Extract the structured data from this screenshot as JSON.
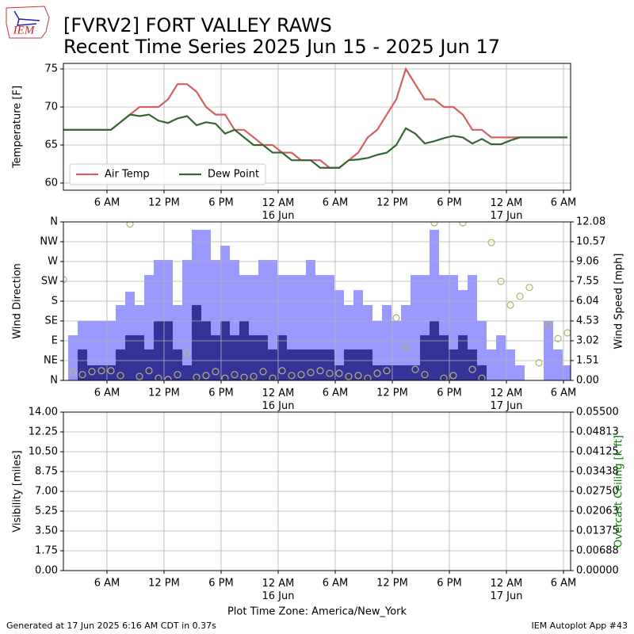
{
  "header": {
    "logo": "IEM",
    "title": "[FVRV2] FORT VALLEY RAWS",
    "subtitle": "Recent Time Series 2025 Jun 15 - 2025 Jun 17"
  },
  "chart_data": [
    {
      "type": "line",
      "ylabel": "Temperature [F]",
      "x": [
        1.42,
        2.42,
        3.42,
        4.42,
        5.42,
        6.42,
        7.42,
        8.42,
        9.42,
        10.42,
        11.42,
        12.42,
        13.42,
        14.42,
        15.42,
        16.42,
        17.42,
        18.42,
        19.42,
        20.42,
        21.42,
        22.42,
        23.42,
        24.42,
        25.42,
        26.42,
        27.42,
        28.42,
        29.42,
        30.42,
        31.42,
        32.42,
        33.42,
        34.42,
        35.42,
        36.42,
        37.42,
        38.42,
        39.42,
        40.42,
        41.42,
        42.42,
        43.42,
        44.42,
        45.42,
        46.42,
        47.42,
        48.42,
        49.42,
        50.42,
        51.42,
        52.42,
        53.42,
        54.42
      ],
      "series": [
        {
          "name": "Air Temp",
          "color": "#d65f5f",
          "values": [
            67,
            67,
            67,
            67,
            67,
            67,
            68,
            69,
            70,
            70,
            70,
            71,
            73,
            73,
            72,
            70,
            69,
            69,
            67,
            67,
            66,
            65,
            65,
            64,
            64,
            63,
            63,
            63,
            62,
            62,
            63,
            64,
            66,
            67,
            69,
            71,
            75,
            73,
            71,
            71,
            70,
            70,
            69,
            67,
            67,
            66,
            66,
            66,
            66,
            null,
            null,
            null,
            null,
            null
          ]
        },
        {
          "name": "Dew Point",
          "color": "#336633",
          "values": [
            67,
            67,
            67,
            67,
            67,
            67,
            68,
            69,
            68.8,
            69,
            68.2,
            67.9,
            68.5,
            68.8,
            67.6,
            68,
            67.8,
            66.5,
            67,
            66,
            65,
            65,
            64,
            64,
            63,
            63,
            63,
            62,
            62,
            62,
            63,
            63.1,
            63.3,
            63.7,
            64,
            65,
            67.2,
            66.5,
            65.2,
            65.5,
            65.9,
            66.2,
            66,
            65.2,
            65.8,
            65.1,
            65.1,
            65.6,
            66,
            66,
            66,
            66,
            66,
            66
          ]
        }
      ],
      "xlim": [
        1.42,
        54.75
      ],
      "xticks": [
        {
          "value": 6,
          "label": "6 AM"
        },
        {
          "value": 12,
          "label": "12 PM"
        },
        {
          "value": 18,
          "label": "6 PM"
        },
        {
          "value": 24,
          "label": "12 AM\n16 Jun"
        },
        {
          "value": 30,
          "label": "6 AM"
        },
        {
          "value": 36,
          "label": "12 PM"
        },
        {
          "value": 42,
          "label": "6 PM"
        },
        {
          "value": 48,
          "label": "12 AM\n17 Jun"
        },
        {
          "value": 54,
          "label": "6 AM"
        }
      ],
      "ylim": [
        59.06,
        75.73
      ],
      "yticks": [
        60,
        65,
        70,
        75
      ],
      "grid": true,
      "legend": "lower left"
    },
    {
      "type": "bar",
      "ylabel": "Wind Direction",
      "y2label": "Wind Speed [mph]",
      "x": [
        1.42,
        2.42,
        3.42,
        4.42,
        5.42,
        6.42,
        7.42,
        8.42,
        9.42,
        10.42,
        11.42,
        12.42,
        13.42,
        14.42,
        15.42,
        16.42,
        17.42,
        18.42,
        19.42,
        20.42,
        21.42,
        22.42,
        23.42,
        24.42,
        25.42,
        26.42,
        27.42,
        28.42,
        29.42,
        30.42,
        31.42,
        32.42,
        33.42,
        34.42,
        35.42,
        36.42,
        37.42,
        38.42,
        39.42,
        40.42,
        41.42,
        42.42,
        43.42,
        44.42,
        45.42,
        46.42,
        47.42,
        48.42,
        49.42,
        50.42,
        51.42,
        52.42,
        53.42,
        54.42
      ],
      "series": [
        {
          "type": "bar",
          "axis": "y2",
          "color": "#9999ff",
          "values": [
            null,
            3.44,
            4.53,
            4.53,
            4.53,
            4.53,
            5.74,
            6.76,
            5.74,
            8.03,
            9.18,
            9.18,
            5.74,
            9.18,
            11.48,
            11.48,
            9.18,
            10.27,
            9.18,
            8.03,
            8.03,
            9.18,
            9.18,
            8.03,
            8.03,
            8.03,
            9.18,
            8.03,
            8.03,
            6.88,
            5.74,
            6.88,
            5.74,
            4.53,
            5.74,
            4.53,
            5.74,
            8.03,
            8.03,
            11.48,
            8.03,
            8.03,
            6.88,
            8.03,
            4.53,
            2.36,
            3.44,
            2.36,
            1.15,
            null,
            null,
            4.53,
            2.36,
            1.15
          ]
        },
        {
          "type": "bar",
          "axis": "y2",
          "color": "#333399",
          "values": [
            null,
            0,
            2.36,
            1.15,
            1.15,
            1.15,
            2.36,
            3.44,
            3.44,
            2.36,
            4.53,
            4.53,
            2.36,
            1.15,
            5.74,
            4.53,
            3.44,
            4.53,
            3.44,
            4.53,
            3.44,
            3.44,
            2.36,
            3.44,
            2.36,
            2.36,
            2.36,
            2.36,
            2.36,
            1.15,
            2.36,
            2.36,
            2.36,
            1.15,
            1.15,
            1.15,
            1.15,
            1.15,
            3.44,
            4.53,
            3.44,
            2.36,
            3.44,
            2.36,
            1.15,
            0,
            0,
            0,
            0,
            null,
            null,
            0,
            0,
            0
          ]
        },
        {
          "type": "scatter",
          "color": "#b5b56a",
          "values": [
            229,
            20,
            13,
            20,
            22,
            22,
            11,
            355,
            9,
            22,
            5,
            2,
            13,
            63,
            7,
            11,
            20,
            5,
            13,
            7,
            9,
            20,
            5,
            22,
            11,
            13,
            18,
            22,
            16,
            16,
            9,
            11,
            5,
            16,
            22,
            142,
            74,
            25,
            13,
            358,
            5,
            11,
            358,
            25,
            5,
            313,
            225,
            171,
            191,
            211,
            40,
            126,
            95,
            108
          ]
        }
      ],
      "xlim": [
        1.42,
        54.75
      ],
      "xticks": [
        {
          "value": 6,
          "label": "6 AM"
        },
        {
          "value": 12,
          "label": "12 PM"
        },
        {
          "value": 18,
          "label": "6 PM"
        },
        {
          "value": 24,
          "label": "12 AM\n16 Jun"
        },
        {
          "value": 30,
          "label": "6 AM"
        },
        {
          "value": 36,
          "label": "12 PM"
        },
        {
          "value": 42,
          "label": "6 PM"
        },
        {
          "value": 48,
          "label": "12 AM\n17 Jun"
        },
        {
          "value": 54,
          "label": "6 AM"
        }
      ],
      "ylim": [
        0,
        360
      ],
      "yticks": [
        {
          "value": 0,
          "label": "N"
        },
        {
          "value": 45,
          "label": "NE"
        },
        {
          "value": 90,
          "label": "E"
        },
        {
          "value": 135,
          "label": "SE"
        },
        {
          "value": 180,
          "label": "S"
        },
        {
          "value": 225,
          "label": "SW"
        },
        {
          "value": 270,
          "label": "W"
        },
        {
          "value": 315,
          "label": "NW"
        },
        {
          "value": 360,
          "label": "N"
        }
      ],
      "y2lim": [
        0,
        12.08
      ],
      "y2ticks": [
        {
          "value": 0,
          "label": "0.00"
        },
        1.51,
        3.02,
        4.53,
        6.04,
        7.55,
        9.06,
        10.57,
        12.08
      ],
      "grid": true
    },
    {
      "type": "line",
      "ylabel": "Visibility [miles]",
      "y2label": "Overcast Ceiling [k ft]",
      "y2label_color": "green",
      "series": [],
      "xlim": [
        1.42,
        54.75
      ],
      "xticks": [
        {
          "value": 6,
          "label": "6 AM"
        },
        {
          "value": 12,
          "label": "12 PM"
        },
        {
          "value": 18,
          "label": "6 PM"
        },
        {
          "value": 24,
          "label": "12 AM\n16 Jun"
        },
        {
          "value": 30,
          "label": "6 AM"
        },
        {
          "value": 36,
          "label": "12 PM"
        },
        {
          "value": 42,
          "label": "6 PM"
        },
        {
          "value": 48,
          "label": "12 AM\n17 Jun"
        },
        {
          "value": 54,
          "label": "6 AM"
        }
      ],
      "xlabel": "Plot Time Zone: America/New_York",
      "ylim": [
        0,
        14
      ],
      "yticks": [
        {
          "value": 0,
          "label": "0.00"
        },
        1.75,
        {
          "value": 3.5,
          "label": "3.50"
        },
        5.25,
        {
          "value": 7,
          "label": "7.00"
        },
        8.75,
        {
          "value": 10.5,
          "label": "10.50"
        },
        12.25,
        {
          "value": 14,
          "label": "14.00"
        }
      ],
      "y2lim": [
        0,
        0.055
      ],
      "y2ticks": [
        {
          "value": 0,
          "label": "0.00000"
        },
        0.00688,
        0.01375,
        0.02063,
        {
          "value": 0.0275,
          "label": "0.02750"
        },
        0.03438,
        0.04125,
        0.04813,
        {
          "value": 0.055,
          "label": "0.05500"
        }
      ],
      "grid": true
    }
  ],
  "footer": {
    "left": "Generated at 17 Jun 2025 6:16 AM CDT in 0.37s",
    "right": "IEM Autoplot App #43"
  }
}
